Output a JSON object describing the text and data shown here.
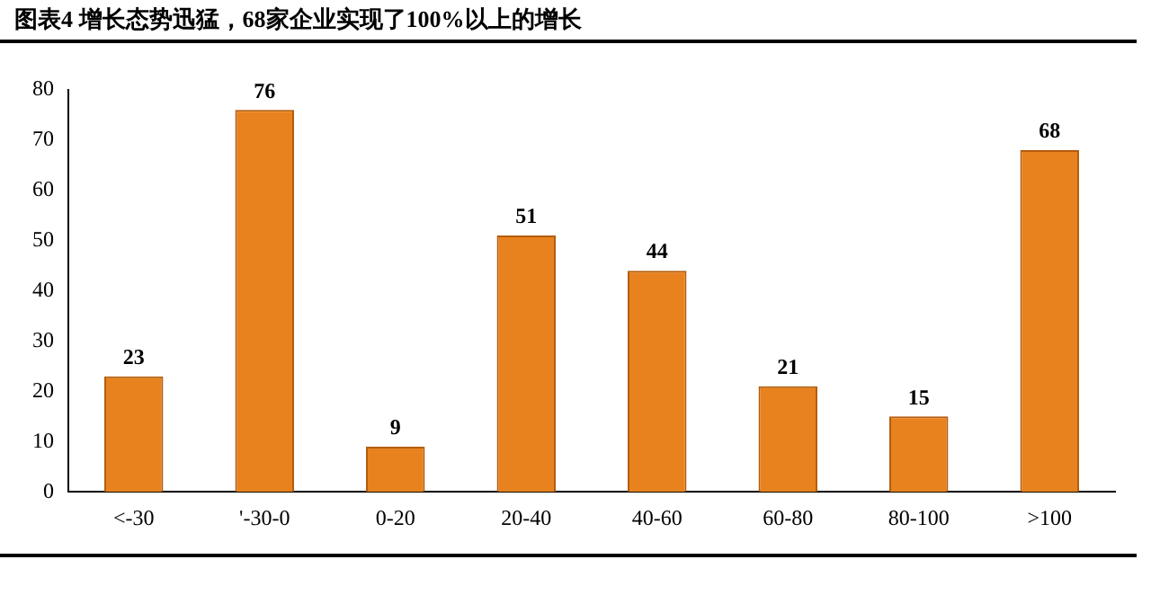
{
  "chart_data": {
    "type": "bar",
    "title": "图表4  增长态势迅猛，68家企业实现了100%以上的增长",
    "categories": [
      "<-30",
      "'-30-0",
      "0-20",
      "20-40",
      "40-60",
      "60-80",
      "80-100",
      ">100"
    ],
    "values": [
      23,
      76,
      9,
      51,
      44,
      21,
      15,
      68
    ],
    "color": "#e8821e",
    "ylim": [
      0,
      80
    ],
    "yticks": [
      0,
      10,
      20,
      30,
      40,
      50,
      60,
      70,
      80
    ],
    "grid": false,
    "data_labels": true
  }
}
